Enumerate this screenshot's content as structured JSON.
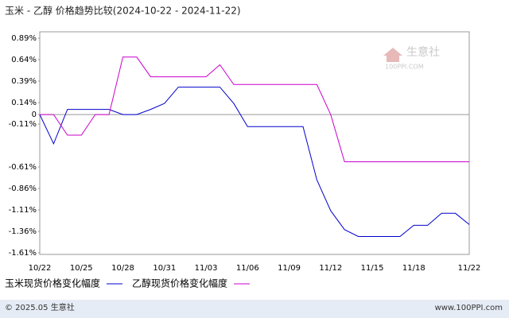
{
  "chart_data": {
    "type": "line",
    "title": "玉米 - 乙醇 价格趋势比较(2024-10-22 - 2024-11-22)",
    "categories": [
      "10/22",
      null,
      null,
      "10/25",
      null,
      null,
      "10/28",
      null,
      null,
      "10/31",
      null,
      null,
      "11/03",
      null,
      null,
      "11/06",
      null,
      null,
      "11/09",
      null,
      null,
      "11/12",
      null,
      null,
      "11/15",
      null,
      null,
      "11/18",
      null,
      null,
      null,
      "11/22"
    ],
    "series": [
      {
        "name": "玉米现货价格变化幅度",
        "color": "#0000cc",
        "values": [
          0,
          -0.34,
          0.06,
          0.06,
          0.06,
          0.06,
          0,
          0,
          0.06,
          0.13,
          0.32,
          0.32,
          0.32,
          0.32,
          0.13,
          -0.14,
          -0.14,
          -0.14,
          -0.14,
          -0.14,
          -0.76,
          -1.12,
          -1.34,
          -1.42,
          -1.42,
          -1.42,
          -1.42,
          -1.29,
          -1.29,
          -1.15,
          -1.15,
          -1.28
        ]
      },
      {
        "name": "乙醇现货价格变化幅度",
        "color": "#cc00cc",
        "values": [
          0,
          0,
          -0.24,
          -0.24,
          0,
          0,
          0.67,
          0.67,
          0.44,
          0.44,
          0.44,
          0.44,
          0.44,
          0.58,
          0.35,
          0.35,
          0.35,
          0.35,
          0.35,
          0.35,
          0.35,
          0,
          -0.55,
          -0.55,
          -0.55,
          -0.55,
          -0.55,
          -0.55,
          -0.55,
          -0.55,
          -0.55,
          -0.55
        ]
      }
    ],
    "ylim": [
      -1.61,
      0.89
    ],
    "yticks": [
      {
        "value": 0.89,
        "label": "0.89%"
      },
      {
        "value": 0.64,
        "label": "0.64%"
      },
      {
        "value": 0.39,
        "label": "0.39%"
      },
      {
        "value": 0.14,
        "label": "0.14%"
      },
      {
        "value": -0.11,
        "label": "-0.11%"
      },
      0,
      {
        "value": -0.61,
        "label": "-0.61%"
      },
      {
        "value": -0.86,
        "label": "-0.86%"
      },
      {
        "value": -1.11,
        "label": "-1.11%"
      },
      {
        "value": -1.36,
        "label": "-1.36%"
      },
      {
        "value": -1.61,
        "label": "-1.61%"
      }
    ],
    "zero_line": true,
    "watermark": {
      "name": "生意社",
      "url": "100PPI.COM"
    },
    "footer_left": "© 2025.05 生意社",
    "footer_right": "www.100PPI.com"
  }
}
